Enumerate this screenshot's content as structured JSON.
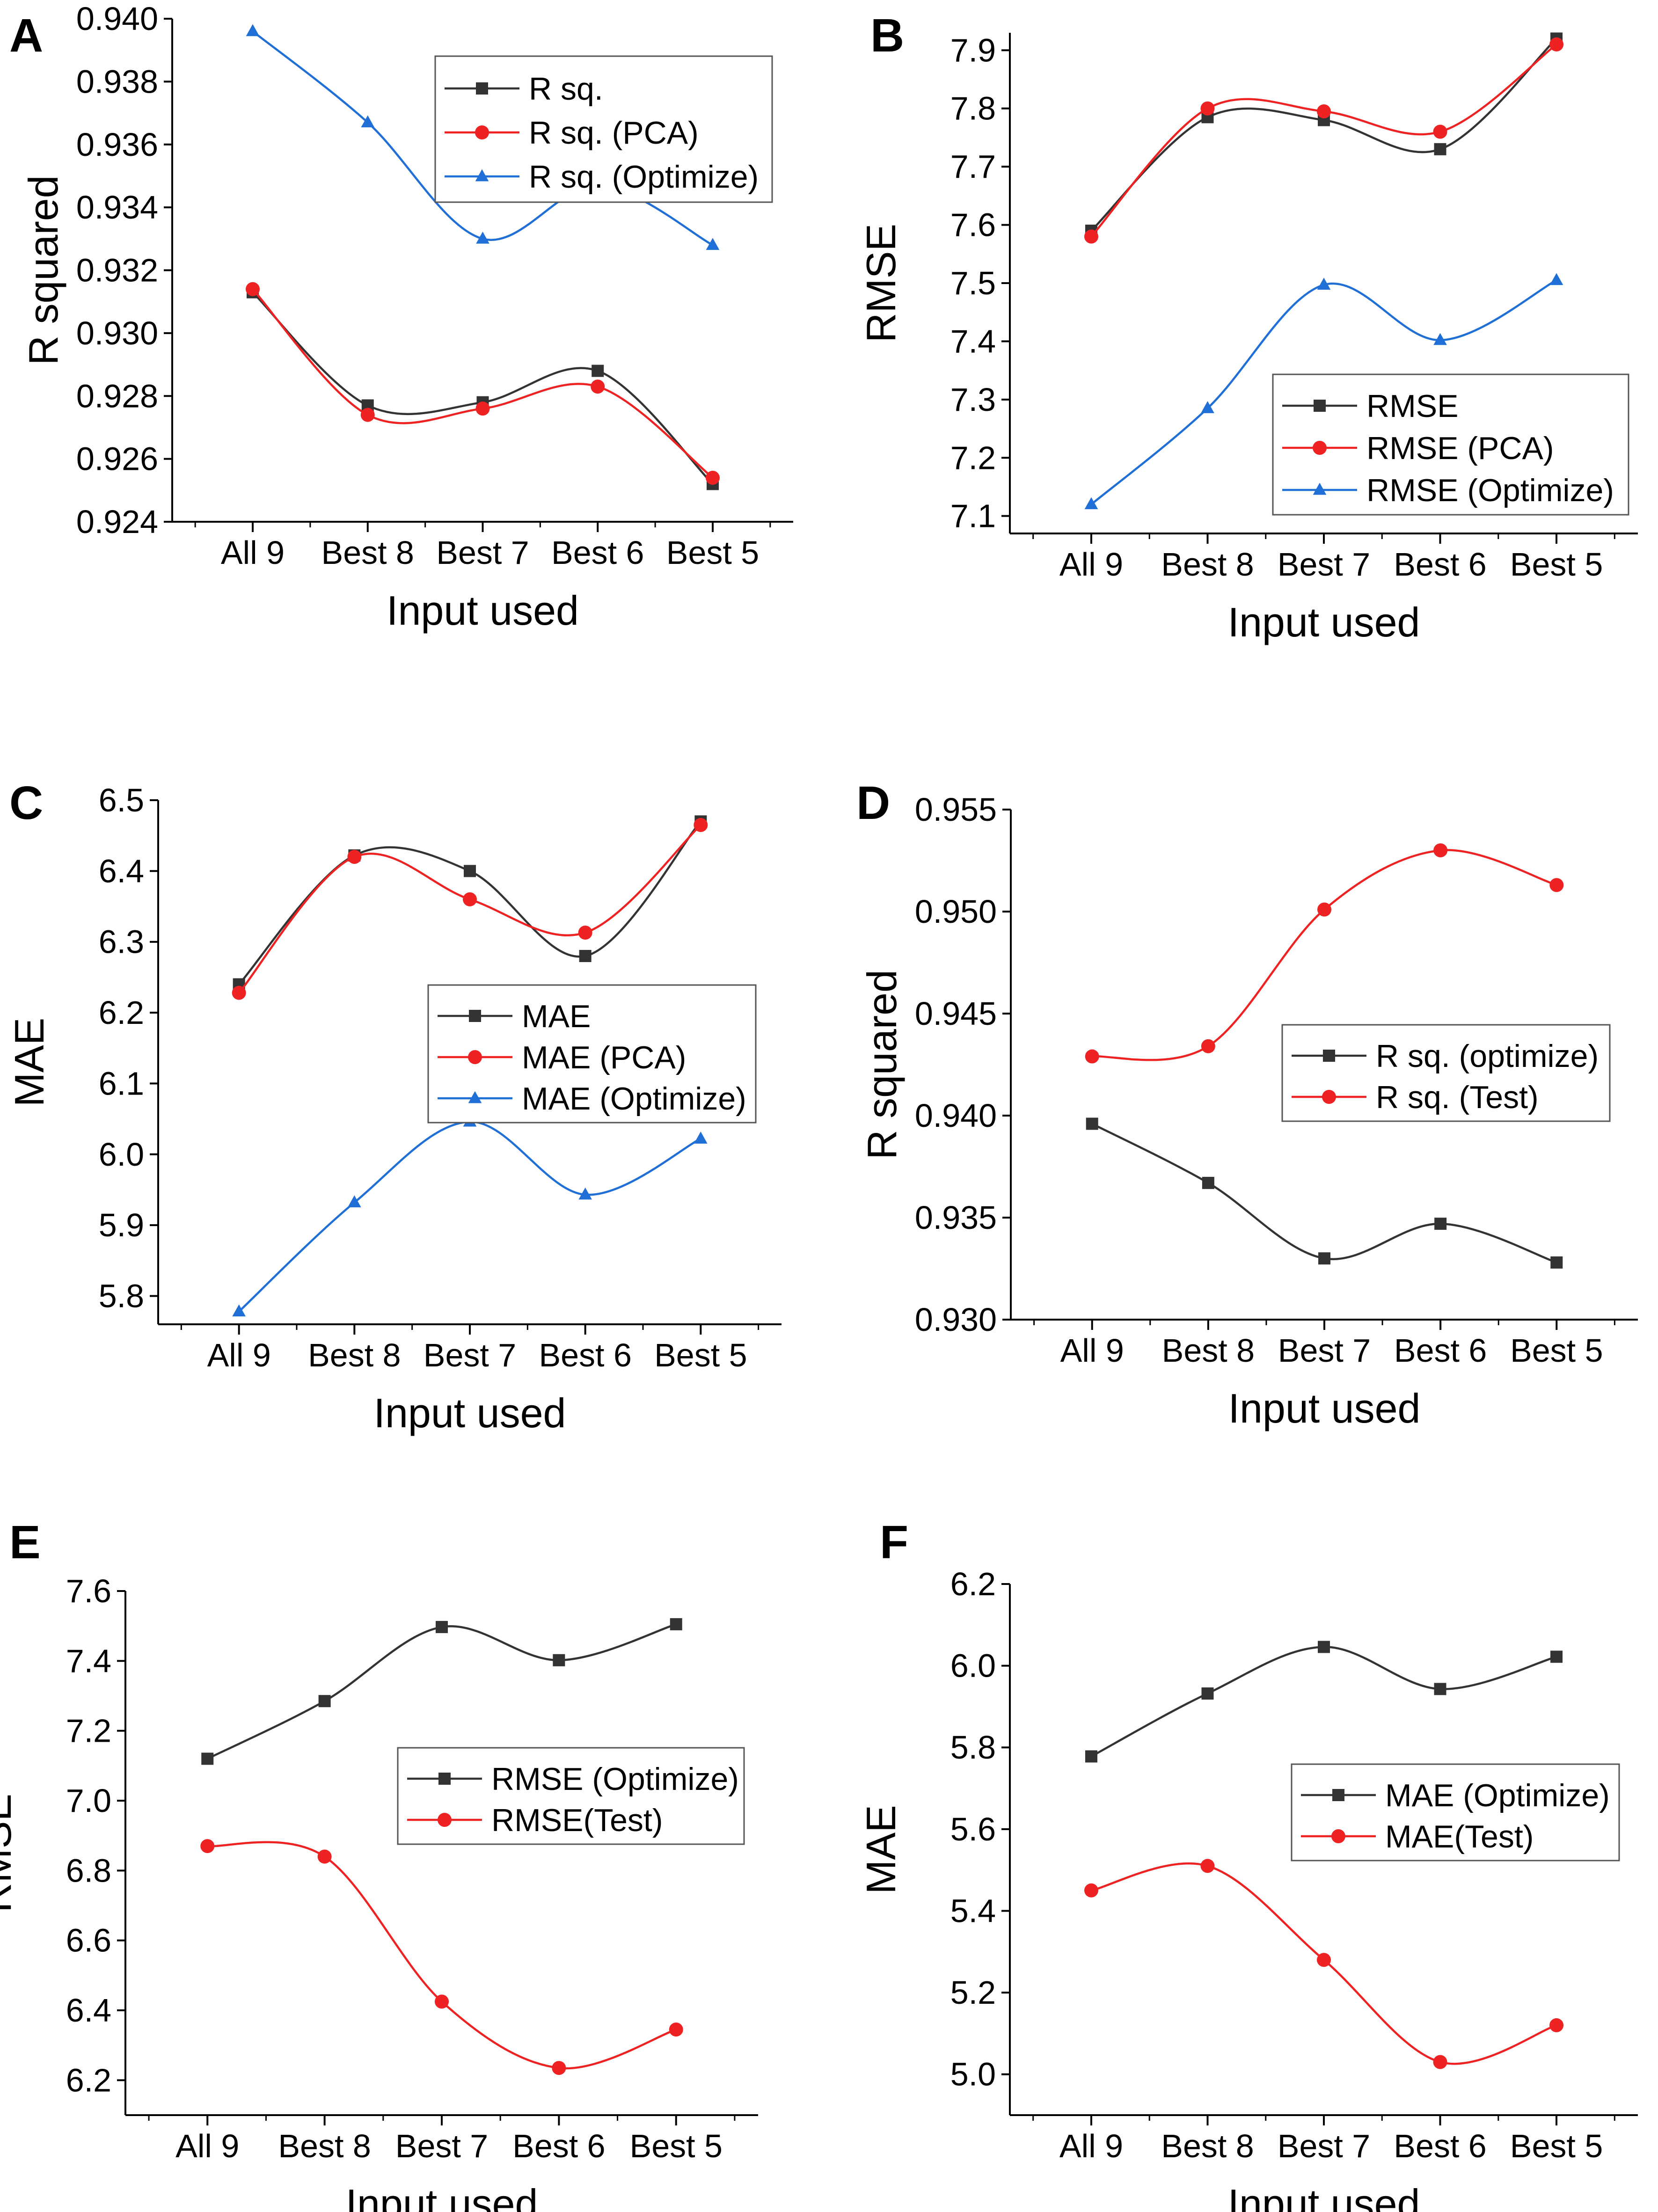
{
  "chart_data": [
    {
      "panel": "A",
      "type": "line",
      "categories": [
        "All 9",
        "Best 8",
        "Best 7",
        "Best 6",
        "Best 5"
      ],
      "xlabel": "Input used",
      "ylabel": "R squared",
      "ylim": [
        0.924,
        0.94
      ],
      "yticks": [
        "0.924",
        "0.926",
        "0.928",
        "0.930",
        "0.932",
        "0.934",
        "0.936",
        "0.938",
        "0.940"
      ],
      "legend_position": "top-right",
      "series": [
        {
          "name": "R sq.",
          "color": "#333333",
          "marker": "square",
          "values": [
            0.9313,
            0.9277,
            0.9278,
            0.9288,
            0.9252
          ]
        },
        {
          "name": "R sq. (PCA)",
          "color": "#ee2222",
          "marker": "circle",
          "values": [
            0.9314,
            0.9274,
            0.9276,
            0.9283,
            0.9254
          ]
        },
        {
          "name": "R sq. (Optimize)",
          "color": "#1f6fd6",
          "marker": "triangle",
          "values": [
            0.9396,
            0.9367,
            0.933,
            0.9347,
            0.9328
          ]
        }
      ]
    },
    {
      "panel": "B",
      "type": "line",
      "categories": [
        "All 9",
        "Best 8",
        "Best 7",
        "Best 6",
        "Best 5"
      ],
      "xlabel": "Input used",
      "ylabel": "RMSE",
      "ylim": [
        7.07,
        7.93
      ],
      "yticks": [
        "7.1",
        "7.2",
        "7.3",
        "7.4",
        "7.5",
        "7.6",
        "7.7",
        "7.8",
        "7.9"
      ],
      "legend_position": "bottom-right",
      "series": [
        {
          "name": "RMSE",
          "color": "#333333",
          "marker": "square",
          "values": [
            7.59,
            7.785,
            7.78,
            7.73,
            7.92
          ]
        },
        {
          "name": "RMSE (PCA)",
          "color": "#ee2222",
          "marker": "circle",
          "values": [
            7.58,
            7.8,
            7.795,
            7.76,
            7.91
          ]
        },
        {
          "name": "RMSE (Optimize)",
          "color": "#1f6fd6",
          "marker": "triangle",
          "values": [
            7.12,
            7.285,
            7.497,
            7.402,
            7.505
          ]
        }
      ]
    },
    {
      "panel": "C",
      "type": "line",
      "categories": [
        "All 9",
        "Best 8",
        "Best 7",
        "Best 6",
        "Best 5"
      ],
      "xlabel": "Input used",
      "ylabel": "MAE",
      "ylim": [
        5.76,
        6.5
      ],
      "yticks": [
        "5.8",
        "5.9",
        "6.0",
        "6.1",
        "6.2",
        "6.3",
        "6.4",
        "6.5"
      ],
      "legend_position": "center-right",
      "series": [
        {
          "name": "MAE",
          "color": "#333333",
          "marker": "square",
          "values": [
            6.24,
            6.422,
            6.4,
            6.28,
            6.47
          ]
        },
        {
          "name": "MAE (PCA)",
          "color": "#ee2222",
          "marker": "circle",
          "values": [
            6.228,
            6.42,
            6.36,
            6.313,
            6.465
          ]
        },
        {
          "name": "MAE (Optimize)",
          "color": "#1f6fd6",
          "marker": "triangle",
          "values": [
            5.778,
            5.932,
            6.046,
            5.943,
            6.022
          ]
        }
      ]
    },
    {
      "panel": "D",
      "type": "line",
      "categories": [
        "All 9",
        "Best 8",
        "Best 7",
        "Best 6",
        "Best 5"
      ],
      "xlabel": "Input used",
      "ylabel": "R squared",
      "ylim": [
        0.93,
        0.955
      ],
      "yticks": [
        "0.930",
        "0.935",
        "0.940",
        "0.945",
        "0.950",
        "0.955"
      ],
      "legend_position": "center-right",
      "series": [
        {
          "name": "R sq. (optimize)",
          "color": "#333333",
          "marker": "square",
          "values": [
            0.9396,
            0.9367,
            0.933,
            0.9347,
            0.9328
          ]
        },
        {
          "name": "R sq. (Test)",
          "color": "#ee2222",
          "marker": "circle",
          "values": [
            0.9429,
            0.9434,
            0.9501,
            0.953,
            0.9513
          ]
        }
      ]
    },
    {
      "panel": "E",
      "type": "line",
      "categories": [
        "All 9",
        "Best 8",
        "Best 7",
        "Best 6",
        "Best 5"
      ],
      "xlabel": "Input used",
      "ylabel": "RMSE",
      "ylim": [
        6.1,
        7.6
      ],
      "yticks": [
        "6.2",
        "6.4",
        "6.6",
        "6.8",
        "7.0",
        "7.2",
        "7.4",
        "7.6"
      ],
      "legend_position": "center-right",
      "series": [
        {
          "name": "RMSE (Optimize)",
          "color": "#333333",
          "marker": "square",
          "values": [
            7.12,
            7.285,
            7.497,
            7.402,
            7.505
          ]
        },
        {
          "name": "RMSE(Test)",
          "color": "#ee2222",
          "marker": "circle",
          "values": [
            6.87,
            6.84,
            6.425,
            6.235,
            6.345
          ]
        }
      ]
    },
    {
      "panel": "F",
      "type": "line",
      "categories": [
        "All 9",
        "Best 8",
        "Best 7",
        "Best 6",
        "Best 5"
      ],
      "xlabel": "Input used",
      "ylabel": "MAE",
      "ylim": [
        4.9,
        6.2
      ],
      "yticks": [
        "5.0",
        "5.2",
        "5.4",
        "5.6",
        "5.8",
        "6.0",
        "6.2"
      ],
      "legend_position": "center-right",
      "series": [
        {
          "name": "MAE (Optimize)",
          "color": "#333333",
          "marker": "square",
          "values": [
            5.778,
            5.932,
            6.046,
            5.943,
            6.022
          ]
        },
        {
          "name": "MAE(Test)",
          "color": "#ee2222",
          "marker": "circle",
          "values": [
            5.45,
            5.51,
            5.28,
            5.03,
            5.12
          ]
        }
      ]
    }
  ]
}
